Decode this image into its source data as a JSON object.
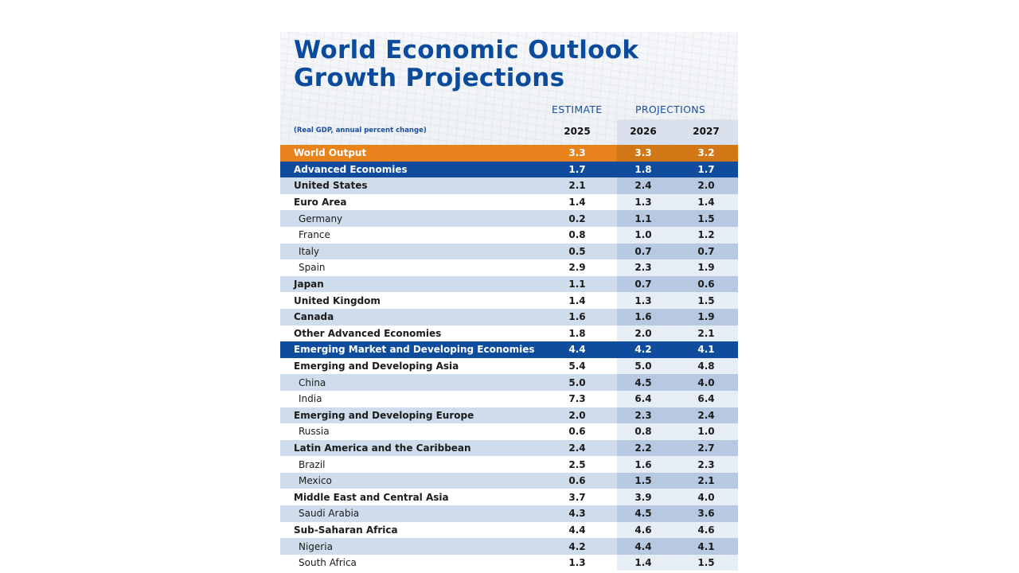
{
  "title_line1": "World Economic Outlook",
  "title_line2": "Growth Projections",
  "header": {
    "estimate_label": "ESTIMATE",
    "projections_label": "PROJECTIONS",
    "subtitle": "(Real GDP, annual percent change)",
    "years": [
      "2025",
      "2026",
      "2027"
    ]
  },
  "colors": {
    "title_blue": "#0b4b9c",
    "world_orange": "#e8821c",
    "group_blue": "#0f4c9e",
    "row_alt": "#cfdceb"
  },
  "rows": [
    {
      "label": "World Output",
      "style": "orange",
      "values": [
        "3.3",
        "3.3",
        "3.2"
      ]
    },
    {
      "label": "Advanced Economies",
      "style": "blue",
      "values": [
        "1.7",
        "1.8",
        "1.7"
      ]
    },
    {
      "label": "United States",
      "style": "bold",
      "values": [
        "2.1",
        "2.4",
        "2.0"
      ]
    },
    {
      "label": "Euro Area",
      "style": "bold",
      "values": [
        "1.4",
        "1.3",
        "1.4"
      ]
    },
    {
      "label": "Germany",
      "style": "indent",
      "values": [
        "0.2",
        "1.1",
        "1.5"
      ]
    },
    {
      "label": "France",
      "style": "indent",
      "values": [
        "0.8",
        "1.0",
        "1.2"
      ]
    },
    {
      "label": "Italy",
      "style": "indent",
      "values": [
        "0.5",
        "0.7",
        "0.7"
      ]
    },
    {
      "label": "Spain",
      "style": "indent",
      "values": [
        "2.9",
        "2.3",
        "1.9"
      ]
    },
    {
      "label": "Japan",
      "style": "bold",
      "values": [
        "1.1",
        "0.7",
        "0.6"
      ]
    },
    {
      "label": "United Kingdom",
      "style": "bold",
      "values": [
        "1.4",
        "1.3",
        "1.5"
      ]
    },
    {
      "label": "Canada",
      "style": "bold",
      "values": [
        "1.6",
        "1.6",
        "1.9"
      ]
    },
    {
      "label": "Other Advanced Economies",
      "style": "bold",
      "values": [
        "1.8",
        "2.0",
        "2.1"
      ]
    },
    {
      "label": "Emerging Market and Developing Economies",
      "style": "blue",
      "values": [
        "4.4",
        "4.2",
        "4.1"
      ]
    },
    {
      "label": "Emerging and Developing Asia",
      "style": "bold",
      "values": [
        "5.4",
        "5.0",
        "4.8"
      ]
    },
    {
      "label": "China",
      "style": "indent",
      "values": [
        "5.0",
        "4.5",
        "4.0"
      ]
    },
    {
      "label": "India",
      "style": "indent",
      "values": [
        "7.3",
        "6.4",
        "6.4"
      ]
    },
    {
      "label": "Emerging and Developing Europe",
      "style": "bold",
      "values": [
        "2.0",
        "2.3",
        "2.4"
      ]
    },
    {
      "label": "Russia",
      "style": "indent",
      "values": [
        "0.6",
        "0.8",
        "1.0"
      ]
    },
    {
      "label": "Latin America and the Caribbean",
      "style": "bold",
      "values": [
        "2.4",
        "2.2",
        "2.7"
      ]
    },
    {
      "label": "Brazil",
      "style": "indent",
      "values": [
        "2.5",
        "1.6",
        "2.3"
      ]
    },
    {
      "label": "Mexico",
      "style": "indent",
      "values": [
        "0.6",
        "1.5",
        "2.1"
      ]
    },
    {
      "label": "Middle East and Central Asia",
      "style": "bold",
      "values": [
        "3.7",
        "3.9",
        "4.0"
      ]
    },
    {
      "label": "Saudi Arabia",
      "style": "indent",
      "values": [
        "4.3",
        "4.5",
        "3.6"
      ]
    },
    {
      "label": "Sub-Saharan Africa",
      "style": "bold",
      "values": [
        "4.4",
        "4.6",
        "4.6"
      ]
    },
    {
      "label": "Nigeria",
      "style": "indent",
      "values": [
        "4.2",
        "4.4",
        "4.1"
      ]
    },
    {
      "label": "South Africa",
      "style": "indent",
      "values": [
        "1.3",
        "1.4",
        "1.5"
      ]
    }
  ]
}
